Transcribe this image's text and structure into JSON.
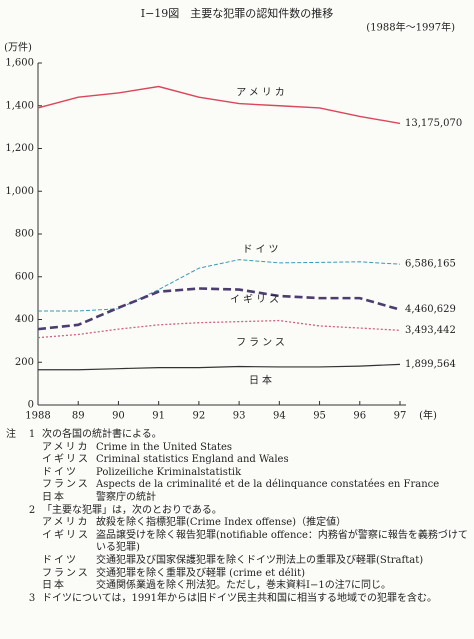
{
  "chart_data": {
    "type": "line",
    "title": "Ⅰ−19図　主要な犯罪の認知件数の推移",
    "subtitle": "(1988年〜1997年)",
    "y_label": "(万件)",
    "x_label": "(年)",
    "x": [
      1988,
      1989,
      1990,
      1991,
      1992,
      1993,
      1994,
      1995,
      1996,
      1997
    ],
    "xlim": [
      1988,
      1997
    ],
    "xticks": [
      {
        "value": 1988,
        "label": "1988"
      },
      {
        "value": 1989,
        "label": "89"
      },
      {
        "value": 1990,
        "label": "90"
      },
      {
        "value": 1991,
        "label": "91"
      },
      {
        "value": 1992,
        "label": "92"
      },
      {
        "value": 1993,
        "label": "93"
      },
      {
        "value": 1994,
        "label": "94"
      },
      {
        "value": 1995,
        "label": "95"
      },
      {
        "value": 1996,
        "label": "96"
      },
      {
        "value": 1997,
        "label": "97"
      }
    ],
    "ylim": [
      0,
      1600
    ],
    "yticks": [
      0,
      200,
      400,
      600,
      800,
      {
        "value": 1000,
        "label": "1,000"
      },
      {
        "value": 1200,
        "label": "1,200"
      },
      {
        "value": 1400,
        "label": "1,400"
      },
      {
        "value": 1600,
        "label": "1,600"
      }
    ],
    "series": [
      {
        "name": "アメリカ",
        "color": "#d9475a",
        "values": [
          1390,
          1440,
          1460,
          1490,
          1440,
          1410,
          1400,
          1390,
          1350,
          1317.507
        ],
        "value_labels": [
          null,
          null,
          null,
          null,
          null,
          null,
          null,
          null,
          null,
          "13,175,070"
        ]
      },
      {
        "name": "ドイツ",
        "color": "#3a9ab5",
        "values": [
          440,
          440,
          450,
          540,
          640,
          680,
          665,
          667,
          670,
          658.6165
        ],
        "value_labels": [
          null,
          null,
          null,
          null,
          null,
          null,
          null,
          null,
          null,
          "6,586,165"
        ]
      },
      {
        "name": "イギリス",
        "color": "#4b3d6e",
        "values": [
          355,
          375,
          455,
          530,
          545,
          540,
          510,
          500,
          500,
          446.0629
        ],
        "value_labels": [
          null,
          null,
          null,
          null,
          null,
          null,
          null,
          null,
          null,
          "4,460,629"
        ]
      },
      {
        "name": "フランス",
        "color": "#d0607e",
        "values": [
          315,
          330,
          355,
          375,
          385,
          390,
          395,
          370,
          360,
          349.3442
        ],
        "value_labels": [
          null,
          null,
          null,
          null,
          null,
          null,
          null,
          null,
          null,
          "3,493,442"
        ]
      },
      {
        "name": "日本",
        "color": "#333333",
        "values": [
          165,
          165,
          170,
          175,
          175,
          180,
          178,
          178,
          182,
          189.9564
        ],
        "value_labels": [
          null,
          null,
          null,
          null,
          null,
          null,
          null,
          null,
          null,
          "1,899,564"
        ]
      }
    ]
  },
  "notes": {
    "label": "注",
    "items": [
      {
        "number": "1",
        "text": "次の各国の統計書による。",
        "rows": [
          {
            "label": "アメリカ",
            "text": "Crime in the United States"
          },
          {
            "label": "イギリス",
            "text": "Criminal statistics England and Wales"
          },
          {
            "label": "ドイツ",
            "text": "Polizeiliche Kriminalstatistik"
          },
          {
            "label": "フランス",
            "text": "Aspects de la criminalité et de la délinquance constatées en France"
          },
          {
            "label": "日本",
            "text": "警察庁の統計"
          }
        ]
      },
      {
        "number": "2",
        "text": "「主要な犯罪」は，次のとおりである。",
        "rows": [
          {
            "label": "アメリカ",
            "text": "故殺を除く指標犯罪(Crime Index offense)（推定値）"
          },
          {
            "label": "イギリス",
            "text": "盗品譲受けを除く報告犯罪(notifiable offence：内務省が警察に報告を義務づけている犯罪)"
          },
          {
            "label": "ドイツ",
            "text": "交通犯罪及び国家保護犯罪を除くドイツ刑法上の重罪及び軽罪(Straftat)"
          },
          {
            "label": "フランス",
            "text": "交通犯罪を除く重罪及び軽罪 (crime et délit)"
          },
          {
            "label": "日本",
            "text": "交通関係業過を除く刑法犯。ただし，巻末資料Ⅰ−1の注7に同じ。"
          }
        ]
      },
      {
        "number": "3",
        "text": "ドイツについては，1991年からは旧ドイツ民主共和国に相当する地域での犯罪を含む。",
        "rows": []
      }
    ]
  }
}
